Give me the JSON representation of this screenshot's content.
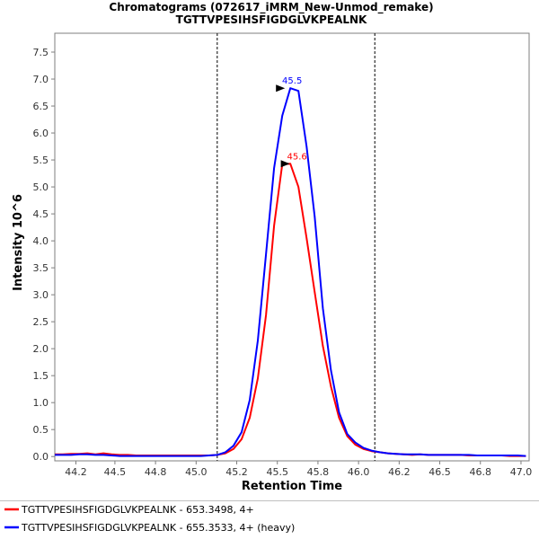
{
  "chart_data": {
    "type": "line",
    "title": "Chromatograms (072617_iMRM_New-Unmod_remake)",
    "subtitle": "TGTTVPESIHSFIGDGLVKPEALNK",
    "xlabel": "Retention Time",
    "ylabel": "Intensity 10^6",
    "xlim": [
      44.1,
      47.02
    ],
    "ylim": [
      -0.08,
      7.85
    ],
    "xticks": [
      "44.2",
      "44.5",
      "44.8",
      "45.0",
      "45.2",
      "45.5",
      "45.8",
      "46.0",
      "46.2",
      "46.5",
      "46.8",
      "47.0"
    ],
    "xtick_values": [
      44.23,
      44.47,
      44.72,
      44.97,
      45.22,
      45.47,
      45.72,
      45.97,
      46.22,
      46.47,
      46.72,
      46.97
    ],
    "yticks": [
      0.0,
      0.5,
      1.0,
      1.5,
      2.0,
      2.5,
      3.0,
      3.5,
      4.0,
      4.5,
      5.0,
      5.5,
      6.0,
      6.5,
      7.0,
      7.5
    ],
    "ytick_labels": [
      "0.0",
      "0.5",
      "1.0",
      "1.5",
      "2.0",
      "2.5",
      "3.0",
      "3.5",
      "4.0",
      "4.5",
      "5.0",
      "5.5",
      "6.0",
      "6.5",
      "7.0",
      "7.5"
    ],
    "boundaries": [
      45.1,
      46.07
    ],
    "series": [
      {
        "name": "TGTTVPESIHSFIGDGLVKPEALNK - 653.3498, 4+",
        "color": "#ff0000",
        "peak_label": "45.6",
        "peak_x": 45.58,
        "peak_y": 5.43,
        "x": [
          44.1,
          44.15,
          44.2,
          44.25,
          44.3,
          44.35,
          44.4,
          44.45,
          44.5,
          44.55,
          44.6,
          44.65,
          44.7,
          44.75,
          44.8,
          44.85,
          44.9,
          44.95,
          45.0,
          45.05,
          45.1,
          45.15,
          45.2,
          45.25,
          45.3,
          45.35,
          45.4,
          45.45,
          45.5,
          45.55,
          45.6,
          45.65,
          45.7,
          45.75,
          45.8,
          45.85,
          45.9,
          45.95,
          46.0,
          46.05,
          46.1,
          46.15,
          46.2,
          46.25,
          46.3,
          46.35,
          46.4,
          46.45,
          46.5,
          46.55,
          46.6,
          46.65,
          46.7,
          46.75,
          46.8,
          46.85,
          46.9,
          46.95,
          47.0
        ],
        "y": [
          0.04,
          0.04,
          0.05,
          0.05,
          0.06,
          0.04,
          0.06,
          0.04,
          0.03,
          0.03,
          0.02,
          0.02,
          0.02,
          0.02,
          0.02,
          0.02,
          0.02,
          0.02,
          0.02,
          0.02,
          0.03,
          0.06,
          0.14,
          0.32,
          0.72,
          1.45,
          2.62,
          4.28,
          5.42,
          5.43,
          5.0,
          4.05,
          3.05,
          2.05,
          1.3,
          0.72,
          0.38,
          0.22,
          0.14,
          0.1,
          0.08,
          0.06,
          0.05,
          0.04,
          0.03,
          0.04,
          0.03,
          0.03,
          0.03,
          0.03,
          0.03,
          0.02,
          0.02,
          0.02,
          0.02,
          0.02,
          0.01,
          0.01,
          0.01
        ]
      },
      {
        "name": "TGTTVPESIHSFIGDGLVKPEALNK - 655.3533, 4+ (heavy)",
        "color": "#0000ff",
        "peak_label": "45.5",
        "peak_x": 45.55,
        "peak_y": 6.83,
        "x": [
          44.1,
          44.15,
          44.2,
          44.25,
          44.3,
          44.35,
          44.4,
          44.45,
          44.5,
          44.55,
          44.6,
          44.65,
          44.7,
          44.75,
          44.8,
          44.85,
          44.9,
          44.95,
          45.0,
          45.05,
          45.1,
          45.15,
          45.2,
          45.25,
          45.3,
          45.35,
          45.4,
          45.45,
          45.5,
          45.55,
          45.6,
          45.65,
          45.7,
          45.75,
          45.8,
          45.85,
          45.9,
          45.95,
          46.0,
          46.05,
          46.1,
          46.15,
          46.2,
          46.25,
          46.3,
          46.35,
          46.4,
          46.45,
          46.5,
          46.55,
          46.6,
          46.65,
          46.7,
          46.75,
          46.8,
          46.85,
          46.9,
          46.95,
          47.0
        ],
        "y": [
          0.03,
          0.03,
          0.03,
          0.04,
          0.04,
          0.03,
          0.03,
          0.02,
          0.01,
          0.01,
          0.01,
          0.01,
          0.01,
          0.01,
          0.01,
          0.01,
          0.01,
          0.01,
          0.01,
          0.02,
          0.03,
          0.08,
          0.2,
          0.45,
          1.05,
          2.15,
          3.75,
          5.35,
          6.32,
          6.83,
          6.78,
          5.75,
          4.45,
          2.75,
          1.6,
          0.82,
          0.42,
          0.26,
          0.16,
          0.11,
          0.08,
          0.06,
          0.05,
          0.04,
          0.04,
          0.04,
          0.03,
          0.03,
          0.03,
          0.03,
          0.03,
          0.03,
          0.02,
          0.02,
          0.02,
          0.02,
          0.02,
          0.02,
          0.01
        ]
      }
    ]
  }
}
